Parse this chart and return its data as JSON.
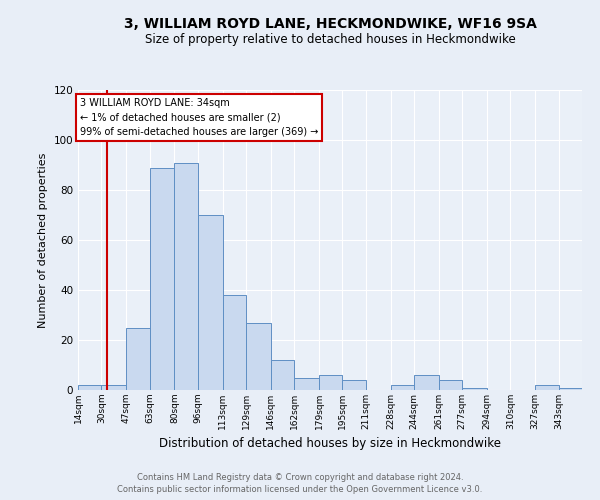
{
  "title": "3, WILLIAM ROYD LANE, HECKMONDWIKE, WF16 9SA",
  "subtitle": "Size of property relative to detached houses in Heckmondwike",
  "xlabel": "Distribution of detached houses by size in Heckmondwike",
  "ylabel": "Number of detached properties",
  "bin_edges": [
    14,
    30,
    47,
    63,
    80,
    96,
    113,
    129,
    146,
    162,
    179,
    195,
    211,
    228,
    244,
    261,
    277,
    294,
    310,
    327,
    343,
    359
  ],
  "bar_heights": [
    2,
    2,
    25,
    89,
    91,
    70,
    38,
    27,
    12,
    5,
    6,
    4,
    0,
    2,
    6,
    4,
    1,
    0,
    0,
    2,
    1
  ],
  "bar_color": "#c9d9ef",
  "bar_edge_color": "#5f8fc4",
  "property_line_x": 34,
  "property_line_color": "#cc0000",
  "annotation_box_edge_color": "#cc0000",
  "annotation_title": "3 WILLIAM ROYD LANE: 34sqm",
  "annotation_line1": "← 1% of detached houses are smaller (2)",
  "annotation_line2": "99% of semi-detached houses are larger (369) →",
  "ylim": [
    0,
    120
  ],
  "yticks": [
    0,
    20,
    40,
    60,
    80,
    100,
    120
  ],
  "tick_labels": [
    "14sqm",
    "30sqm",
    "47sqm",
    "63sqm",
    "80sqm",
    "96sqm",
    "113sqm",
    "129sqm",
    "146sqm",
    "162sqm",
    "179sqm",
    "195sqm",
    "211sqm",
    "228sqm",
    "244sqm",
    "261sqm",
    "277sqm",
    "294sqm",
    "310sqm",
    "327sqm",
    "343sqm"
  ],
  "footer1": "Contains HM Land Registry data © Crown copyright and database right 2024.",
  "footer2": "Contains public sector information licensed under the Open Government Licence v3.0.",
  "bg_color": "#e8eef7",
  "plot_bg_color": "#eaf0f8"
}
